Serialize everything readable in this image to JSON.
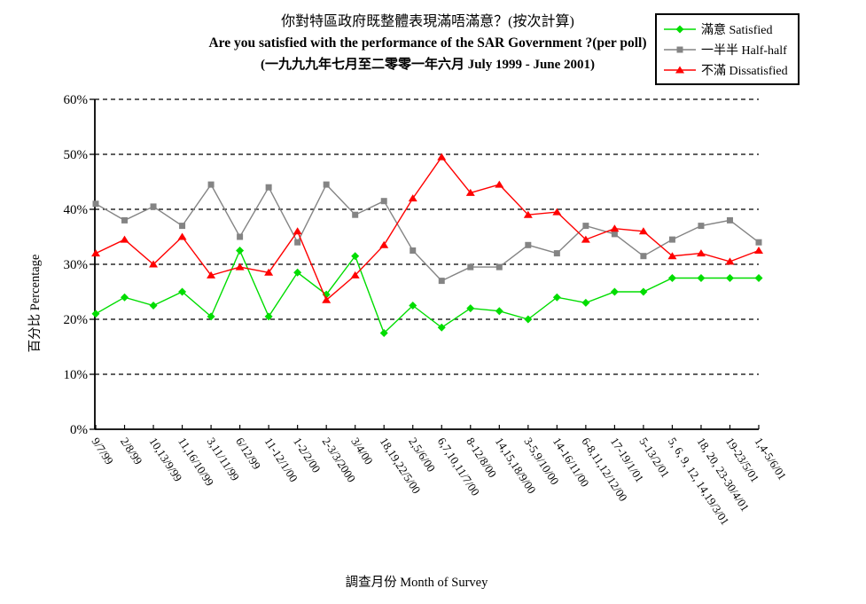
{
  "title": {
    "line1_zh": "你對特區政府既整體表現滿唔滿意？(按次計算)",
    "line2_en": "Are you satisfied with the performance of the SAR Government ?(per poll)",
    "line3_range": "(一九九九年七月至二零零一年六月 July 1999 - June 2001)"
  },
  "axes": {
    "y_title": "百分比 Percentage",
    "x_title": "調查月份 Month of Survey",
    "y_min": 0,
    "y_max": 60,
    "y_step": 10,
    "y_tick_labels": [
      "0%",
      "10%",
      "20%",
      "30%",
      "40%",
      "50%",
      "60%"
    ]
  },
  "chart_data": {
    "type": "line",
    "title": "你對特區政府既整體表現滿唔滿意？(按次計算) Are you satisfied with the performance of the SAR Government ?(per poll) (一九九九年七月至二零零一年六月 July 1999 - June 2001)",
    "xlabel": "調查月份 Month of Survey",
    "ylabel": "百分比 Percentage",
    "ylim": [
      0,
      60
    ],
    "grid": "horizontal-dashed",
    "legend_position": "top-right",
    "categories": [
      "9/7/99",
      "2/8/99",
      "10,13/9/99",
      "11,16/10/99",
      "3,11/11/99",
      "6/12/99",
      "11-12/1/00",
      "1-2/2/00",
      "2-3/3/2000",
      "3/4/00",
      "18,19,22/5/00",
      "2,5/6/00",
      "6,7,10,11/7/00",
      "8-12/8/00",
      "14,15,18/9/00",
      "3-5,9/10/00",
      "14-16/11/00",
      "6-8,11,12/12/00",
      "17-19/1/01",
      "5-13/2/01",
      "5, 6, 9, 12, 14,19/3/01",
      "18, 20, 23-30/4/01",
      "19-23/5/01",
      "1,4-5/6/01"
    ],
    "series": [
      {
        "key": "satisfied",
        "name": "滿意 Satisfied",
        "color": "#00DD00",
        "marker": "diamond",
        "values": [
          21,
          24,
          22.5,
          25,
          20.5,
          32.5,
          20.5,
          28.5,
          24.5,
          31.5,
          17.5,
          22.5,
          18.5,
          22,
          21.5,
          20,
          24,
          23,
          25,
          25,
          27.5,
          27.5,
          27.5,
          27.5
        ]
      },
      {
        "key": "half-half",
        "name": "一半半 Half-half",
        "color": "#848484",
        "marker": "square",
        "values": [
          41,
          38,
          40.5,
          37,
          44.5,
          35,
          44,
          34,
          44.5,
          39,
          41.5,
          32.5,
          27,
          29.5,
          29.5,
          33.5,
          32,
          37,
          35.5,
          31.5,
          34.5,
          37,
          38,
          34
        ]
      },
      {
        "key": "dissatisfied",
        "name": "不滿 Dissatisfied",
        "color": "#FF0000",
        "marker": "triangle",
        "values": [
          32,
          34.5,
          30,
          35,
          28,
          29.5,
          28.5,
          36,
          23.5,
          28,
          33.5,
          42,
          49.5,
          43,
          44.5,
          39,
          39.5,
          34.5,
          36.5,
          36,
          31.5,
          32,
          30.5,
          32.5
        ]
      }
    ]
  }
}
